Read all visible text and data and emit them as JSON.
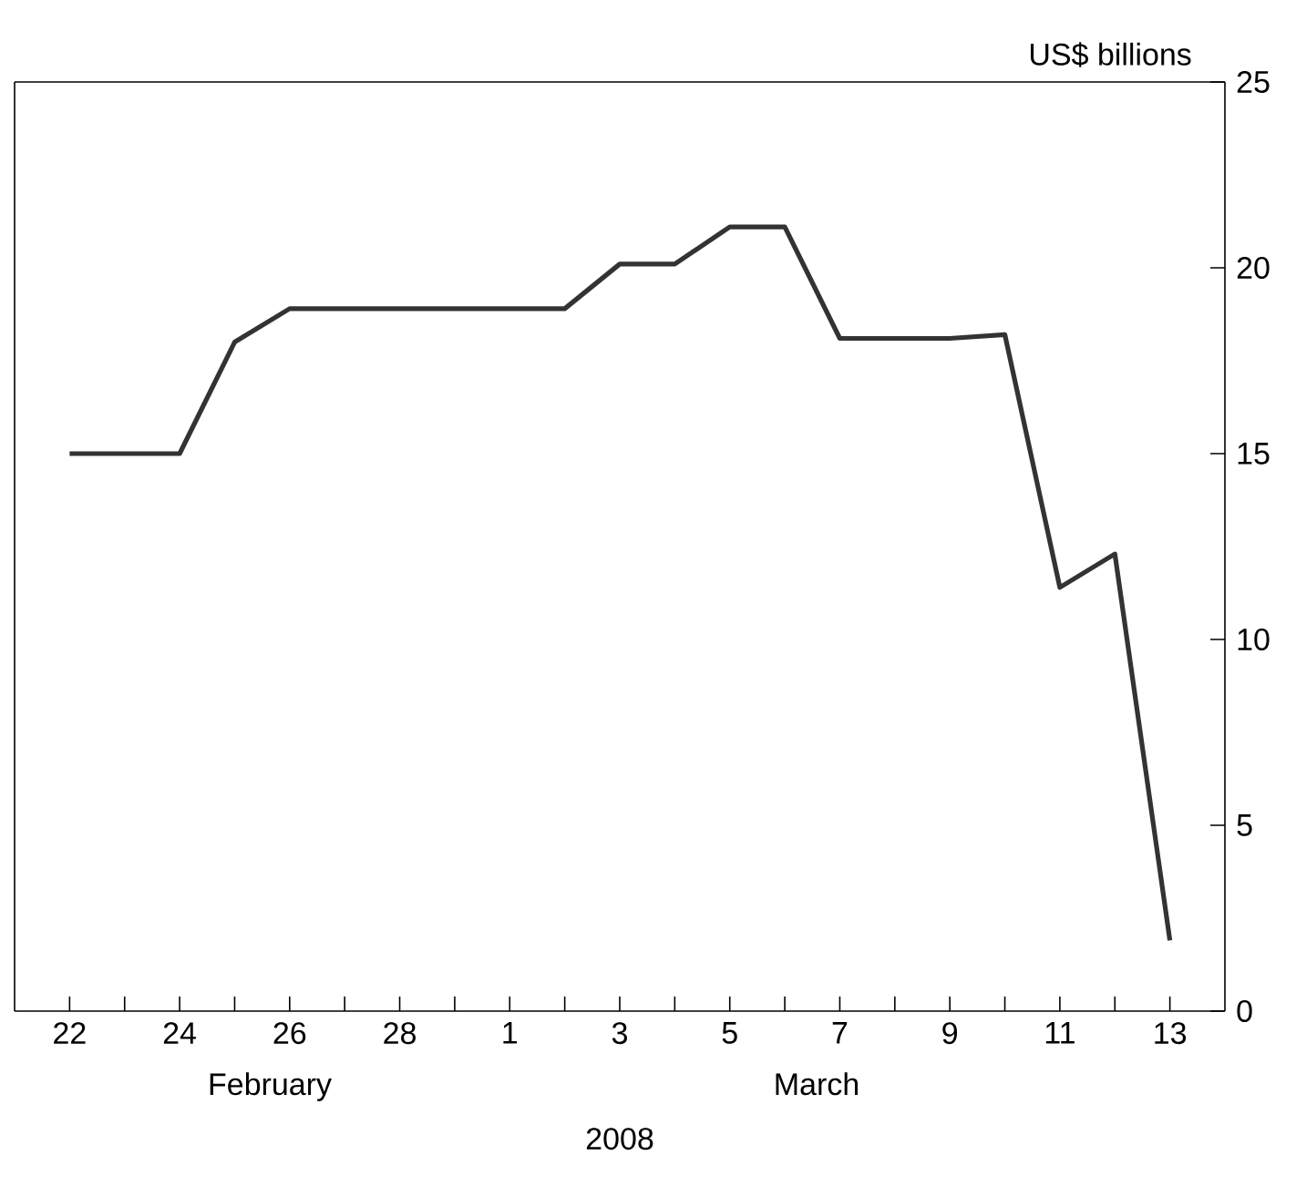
{
  "chart_data": {
    "type": "line",
    "ylabel": "US$ billions",
    "xlabel": "2008",
    "annotations": [
      "February",
      "March"
    ],
    "x": [
      "2008-02-22",
      "2008-02-23",
      "2008-02-24",
      "2008-02-25",
      "2008-02-26",
      "2008-02-27",
      "2008-02-28",
      "2008-02-29",
      "2008-03-01",
      "2008-03-02",
      "2008-03-03",
      "2008-03-04",
      "2008-03-05",
      "2008-03-06",
      "2008-03-07",
      "2008-03-08",
      "2008-03-09",
      "2008-03-10",
      "2008-03-11",
      "2008-03-12",
      "2008-03-13"
    ],
    "series": [
      {
        "color": "#333333",
        "values": [
          15,
          15,
          15,
          18,
          18.9,
          18.9,
          18.9,
          18.9,
          18.9,
          18.9,
          20.1,
          20.1,
          21.1,
          21.1,
          18.1,
          18.1,
          18.1,
          18.2,
          11.4,
          12.3,
          1.9
        ]
      }
    ],
    "xlim": [
      "2008-02-21",
      "2008-03-14"
    ],
    "xticks": [
      {
        "value": "2008-02-22",
        "label": "22"
      },
      {
        "value": "2008-02-23",
        "label": null
      },
      {
        "value": "2008-02-24",
        "label": "24"
      },
      {
        "value": "2008-02-25",
        "label": null
      },
      {
        "value": "2008-02-26",
        "label": "26"
      },
      {
        "value": "2008-02-27",
        "label": null
      },
      {
        "value": "2008-02-28",
        "label": "28"
      },
      {
        "value": "2008-02-29",
        "label": null
      },
      {
        "value": "2008-03-01",
        "label": "1"
      },
      {
        "value": "2008-03-02",
        "label": null
      },
      {
        "value": "2008-03-03",
        "label": "3"
      },
      {
        "value": "2008-03-04",
        "label": null
      },
      {
        "value": "2008-03-05",
        "label": "5"
      },
      {
        "value": "2008-03-06",
        "label": null
      },
      {
        "value": "2008-03-07",
        "label": "7"
      },
      {
        "value": "2008-03-08",
        "label": null
      },
      {
        "value": "2008-03-09",
        "label": "9"
      },
      {
        "value": "2008-03-10",
        "label": null
      },
      {
        "value": "2008-03-11",
        "label": "11"
      },
      {
        "value": "2008-03-12",
        "label": null
      },
      {
        "value": "2008-03-13",
        "label": "13"
      }
    ],
    "ylim": [
      0,
      25
    ],
    "yticks": [
      0,
      5,
      10,
      15,
      20,
      25
    ],
    "grid": false,
    "marker": "none",
    "line_style": "solid"
  }
}
